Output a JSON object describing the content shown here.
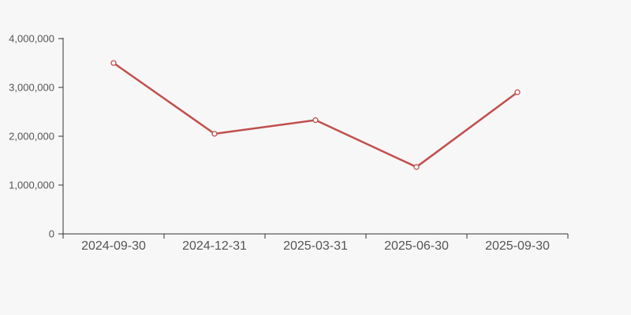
{
  "chart_data": {
    "type": "line",
    "categories": [
      "2024-09-30",
      "2024-12-31",
      "2025-03-31",
      "2025-06-30",
      "2025-09-30"
    ],
    "values": [
      3500000,
      2050000,
      2330000,
      1370000,
      2900000
    ],
    "title": "",
    "xlabel": "",
    "ylabel": "",
    "ylim": [
      0,
      4000000
    ],
    "y_tick_step": 1000000,
    "y_tick_labels": [
      "0",
      "1,000,000",
      "2,000,000",
      "3,000,000",
      "4,000,000"
    ],
    "grid": false,
    "legend": "none",
    "marker": "hollow-circle",
    "colors": {
      "line": "#c0504d",
      "marker_fill": "#ffffff",
      "axis": "#333333",
      "tick_label": "#555555",
      "background": "#f7f7f7"
    }
  }
}
